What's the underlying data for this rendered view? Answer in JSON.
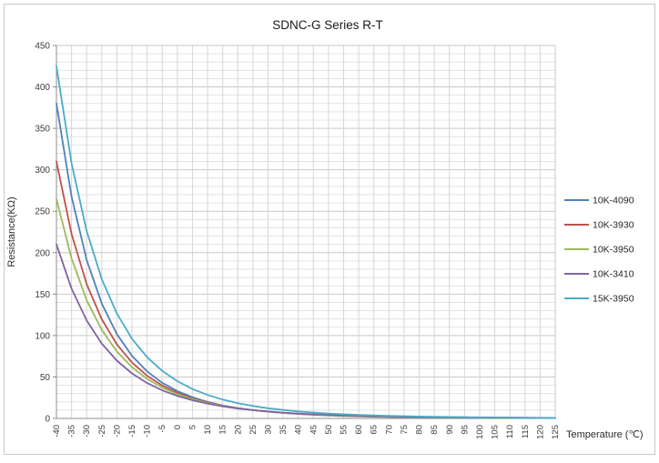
{
  "window": {
    "background": "#ffffff",
    "border_color": "#c9c9c9"
  },
  "chart_data": {
    "type": "line",
    "title": "SDNC-G Series R-T",
    "xlabel": "Temperature (℃)",
    "ylabel": "Resistance(KΩ)",
    "grid": true,
    "legend_position": "right",
    "ylim": [
      0,
      450
    ],
    "y_tick_step": 50,
    "y_minor_step": 10,
    "x": [
      -40,
      -35,
      -30,
      -25,
      -20,
      -15,
      -10,
      -5,
      0,
      5,
      10,
      15,
      20,
      25,
      30,
      35,
      40,
      45,
      50,
      55,
      60,
      65,
      70,
      75,
      80,
      85,
      90,
      95,
      100,
      105,
      110,
      115,
      120,
      125
    ],
    "series": [
      {
        "name": "10K-4090",
        "color": "#4F81BD",
        "values": [
          380.0,
          267.7,
          191.3,
          138.6,
          101.7,
          75.5,
          56.7,
          43.0,
          33.0,
          25.6,
          20.0,
          15.7,
          12.5,
          10.0,
          8.1,
          6.6,
          5.4,
          4.4,
          3.6,
          3.0,
          2.5,
          2.1,
          1.8,
          1.5,
          1.3,
          1.1,
          1.0,
          0.8,
          0.7,
          0.6,
          0.6,
          0.5,
          0.4,
          0.4
        ]
      },
      {
        "name": "10K-3930",
        "color": "#C0504D",
        "values": [
          310.0,
          222.6,
          162.1,
          119.6,
          89.3,
          67.4,
          51.5,
          39.7,
          30.9,
          24.2,
          19.2,
          15.3,
          12.3,
          10.0,
          8.2,
          6.7,
          5.5,
          4.6,
          3.9,
          3.2,
          2.7,
          2.3,
          2.0,
          1.7,
          1.5,
          1.3,
          1.1,
          1.0,
          0.8,
          0.7,
          0.7,
          0.6,
          0.5,
          0.5
        ]
      },
      {
        "name": "10K-3950",
        "color": "#9BBB59",
        "values": [
          264.8,
          193.1,
          142.7,
          106.8,
          80.8,
          61.8,
          47.7,
          37.3,
          29.3,
          23.3,
          18.6,
          15.0,
          12.2,
          10.0,
          8.2,
          6.8,
          5.7,
          4.8,
          4.0,
          3.4,
          2.9,
          2.5,
          2.1,
          1.8,
          1.6,
          1.4,
          1.2,
          1.1,
          0.9,
          0.8,
          0.7,
          0.7,
          0.6,
          0.5
        ]
      },
      {
        "name": "10K-3410",
        "color": "#8064A2",
        "values": [
          210.0,
          156.6,
          118.3,
          90.3,
          69.7,
          54.3,
          42.7,
          33.9,
          27.2,
          21.9,
          17.8,
          14.6,
          12.0,
          10.0,
          8.4,
          7.0,
          5.9,
          5.0,
          4.3,
          3.7,
          3.2,
          2.7,
          2.4,
          2.1,
          1.8,
          1.6,
          1.4,
          1.3,
          1.1,
          1.0,
          0.9,
          0.8,
          0.7,
          0.6
        ]
      },
      {
        "name": "15K-3950",
        "color": "#4BACC6",
        "values": [
          425.0,
          307.9,
          226.2,
          168.1,
          126.5,
          96.2,
          73.9,
          57.4,
          45.0,
          35.5,
          28.3,
          22.7,
          18.4,
          15.0,
          12.3,
          10.2,
          8.5,
          7.1,
          5.9,
          5.0,
          4.3,
          3.6,
          3.1,
          2.7,
          2.3,
          2.0,
          1.8,
          1.5,
          1.3,
          1.2,
          1.1,
          0.9,
          0.8,
          0.7
        ]
      }
    ]
  }
}
